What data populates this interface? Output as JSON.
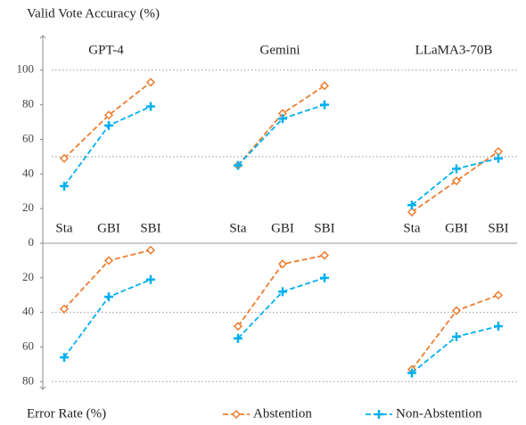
{
  "chart_data": {
    "type": "line",
    "groups": [
      "GPT-4",
      "Gemini",
      "LLaMA3-70B"
    ],
    "categories": [
      "Sta",
      "GBI",
      "SBI"
    ],
    "legend_position": "bottom",
    "series": [
      {
        "name": "Abstention",
        "color": "#ed7d31",
        "marker": "diamond"
      },
      {
        "name": "Non-Abstention",
        "color": "#00b0f0",
        "marker": "plus"
      }
    ],
    "panels": [
      {
        "ylabel": "Valid Vote Accuracy (%)",
        "inverted": false,
        "ylim": [
          0,
          105
        ],
        "yticks": [
          0,
          20,
          40,
          60,
          80,
          100
        ],
        "grid_lines": [
          50,
          100
        ],
        "values": [
          [
            [
              49,
              74,
              93
            ],
            [
              45,
              75,
              91
            ],
            [
              18,
              36,
              53
            ]
          ],
          [
            [
              33,
              68,
              79
            ],
            [
              45,
              72,
              80
            ],
            [
              22,
              43,
              49
            ]
          ]
        ]
      },
      {
        "ylabel": "Error Rate (%)",
        "inverted": true,
        "ylim": [
          0,
          85
        ],
        "yticks": [
          20,
          40,
          60,
          80
        ],
        "grid_lines": [
          40,
          80
        ],
        "values": [
          [
            [
              38,
              10,
              4
            ],
            [
              48,
              12,
              7
            ],
            [
              73,
              39,
              30
            ]
          ],
          [
            [
              66,
              31,
              21
            ],
            [
              55,
              28,
              20
            ],
            [
              75,
              54,
              48
            ]
          ]
        ]
      }
    ]
  }
}
